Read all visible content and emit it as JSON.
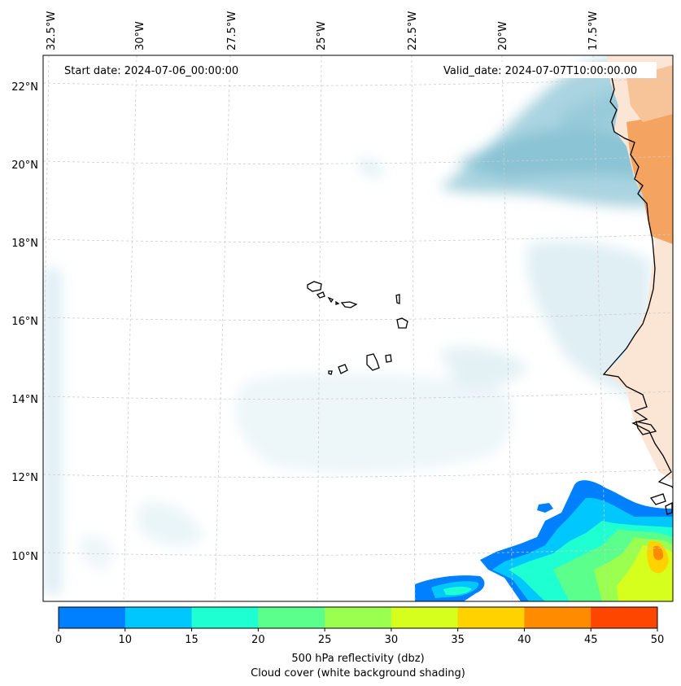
{
  "map": {
    "start_label": "Start date: 2024-07-06_00:00:00",
    "valid_label": "Valid_date: 2024-07-07T10:00:00.00",
    "lat_labels": [
      "22°N",
      "20°N",
      "18°N",
      "16°N",
      "14°N",
      "12°N",
      "10°N"
    ],
    "lon_labels": [
      "32.5°W",
      "30°W",
      "27.5°W",
      "25°W",
      "22.5°W",
      "20°W",
      "17.5°W"
    ],
    "colorbar": {
      "ticks": [
        "0",
        "10",
        "15",
        "20",
        "25",
        "30",
        "35",
        "40",
        "45",
        "50"
      ],
      "colors": [
        "#0080ff",
        "#00c8ff",
        "#1effd2",
        "#5aff8c",
        "#9bff50",
        "#d7ff1e",
        "#ffd200",
        "#ff8c00",
        "#ff4600"
      ],
      "label_line1": "500 hPa reflectivity (dbz)",
      "label_line2": "Cloud cover (white background shading)"
    },
    "colors": {
      "cloud": "#a8d4e0",
      "land_warm": "#f4a460",
      "coast": "#000000",
      "grid": "#cccccc"
    }
  }
}
